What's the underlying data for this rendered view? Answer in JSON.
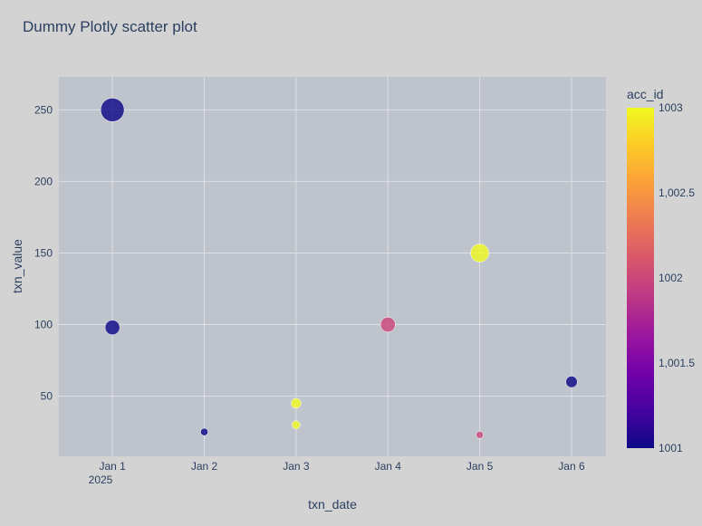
{
  "chart_data": {
    "type": "scatter",
    "title": "Dummy Plotly scatter plot",
    "xlabel": "txn_date",
    "ylabel": "txn_value",
    "x_ticks": [
      "2025-01-01",
      "2025-01-02",
      "2025-01-03",
      "2025-01-04",
      "2025-01-05",
      "2025-01-06"
    ],
    "x_tick_labels": [
      "Jan 1",
      "Jan 2",
      "Jan 3",
      "Jan 4",
      "Jan 5",
      "Jan 6"
    ],
    "x_year_label": "2025",
    "y_ticks": [
      50,
      100,
      150,
      200,
      250
    ],
    "y_tick_labels": [
      "50",
      "100",
      "150",
      "200",
      "250"
    ],
    "ylim": [
      8,
      273
    ],
    "xlim": [
      "2024-12-31T10:00",
      "2025-01-06T09:00"
    ],
    "grid": true,
    "size_by": "txn_value",
    "color_by": "acc_id",
    "colorbar": {
      "title": "acc_id",
      "range": [
        1001,
        1003
      ],
      "ticks": [
        1001,
        1001.5,
        1002,
        1002.5,
        1003
      ],
      "tick_labels": [
        "1001",
        "1,001.5",
        "1002",
        "1,002.5",
        "1003"
      ],
      "colors": [
        "#0d0887",
        "#46039f",
        "#7201a8",
        "#9c179e",
        "#bd3786",
        "#d8576b",
        "#ed7953",
        "#fb9f3a",
        "#fdca26",
        "#f0f921"
      ]
    },
    "points": [
      {
        "x": "2025-01-01",
        "y": 250,
        "acc_id": 1001
      },
      {
        "x": "2025-01-01",
        "y": 98,
        "acc_id": 1001
      },
      {
        "x": "2025-01-02",
        "y": 25,
        "acc_id": 1001
      },
      {
        "x": "2025-01-03",
        "y": 45,
        "acc_id": 1003
      },
      {
        "x": "2025-01-03",
        "y": 30,
        "acc_id": 1003
      },
      {
        "x": "2025-01-04",
        "y": 100,
        "acc_id": 1002
      },
      {
        "x": "2025-01-05",
        "y": 150,
        "acc_id": 1003
      },
      {
        "x": "2025-01-05",
        "y": 23,
        "acc_id": 1002
      },
      {
        "x": "2025-01-06",
        "y": 60,
        "acc_id": 1001
      }
    ]
  }
}
